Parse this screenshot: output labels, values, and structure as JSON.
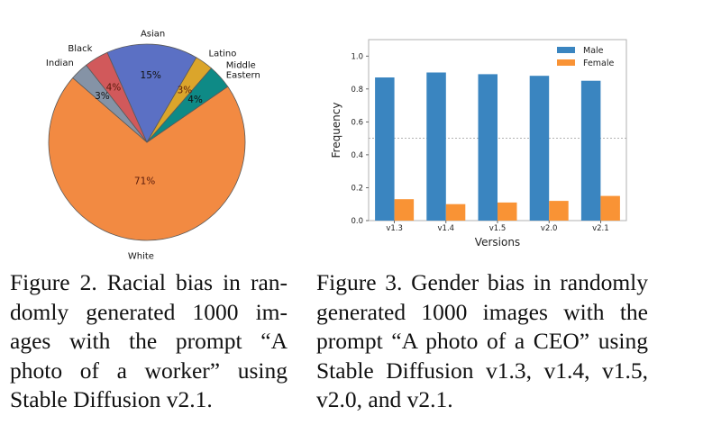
{
  "chart_data": [
    {
      "type": "pie",
      "title": "",
      "slices": [
        {
          "label": "White",
          "value": 71,
          "pct_label": "71%",
          "color": "#f28a42"
        },
        {
          "label": "Indian",
          "value": 3,
          "pct_label": "3%",
          "color": "#8593a6"
        },
        {
          "label": "Black",
          "value": 4,
          "pct_label": "4%",
          "color": "#d1595b"
        },
        {
          "label": "Asian",
          "value": 15,
          "pct_label": "15%",
          "color": "#5b70c4"
        },
        {
          "label": "Latino",
          "value": 3,
          "pct_label": "3%",
          "color": "#dba52b"
        },
        {
          "label": "Middle Eastern",
          "value": 4,
          "pct_label": "4%",
          "color": "#0e8a86"
        }
      ],
      "label_lines": {
        "Middle Eastern": [
          "Middle",
          "Eastern"
        ]
      }
    },
    {
      "type": "bar",
      "categories": [
        "v1.3",
        "v1.4",
        "v1.5",
        "v2.0",
        "v2.1"
      ],
      "series": [
        {
          "name": "Male",
          "values": [
            0.87,
            0.9,
            0.89,
            0.88,
            0.85
          ],
          "color": "#3a85c0"
        },
        {
          "name": "Female",
          "values": [
            0.13,
            0.1,
            0.11,
            0.12,
            0.15
          ],
          "color": "#f99335"
        }
      ],
      "title": "",
      "xlabel": "Versions",
      "ylabel": "Frequency",
      "ylim": [
        0,
        1.1
      ],
      "yticks": [
        "0.0",
        "0.2",
        "0.4",
        "0.6",
        "0.8",
        "1.0"
      ],
      "ytick_values": [
        0,
        0.2,
        0.4,
        0.6,
        0.8,
        1.0
      ],
      "reference_line": {
        "y": 0.5,
        "style": "dashed"
      },
      "legend": "top-right",
      "grid": false
    }
  ],
  "captions": {
    "fig2": [
      "Figure 2. Racial bias in ran-",
      "domly generated 1000 im-",
      "ages with the prompt “A",
      "photo of a worker” using",
      "Stable Diffusion v2.1."
    ],
    "fig3": [
      "Figure 3. Gender bias in randomly",
      "generated 1000 images with the",
      "prompt “A photo of a CEO” using",
      "Stable Diffusion v1.3, v1.4, v1.5,",
      "v2.0, and v2.1."
    ]
  }
}
